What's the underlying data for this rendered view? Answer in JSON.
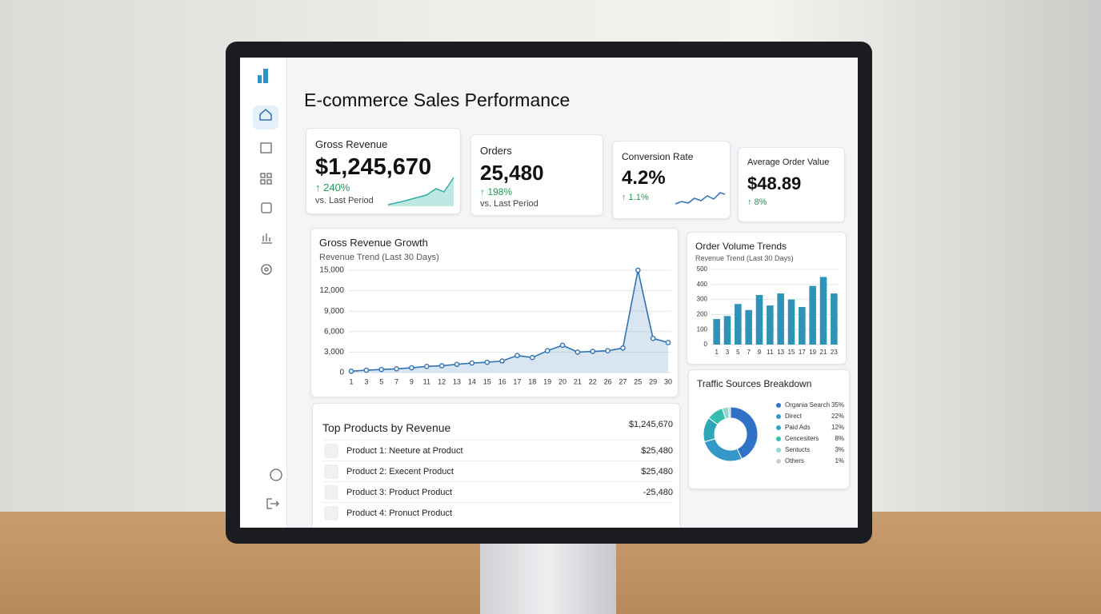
{
  "header": {
    "title": "E-commerce Sales Performance"
  },
  "kpis": [
    {
      "label": "Gross Revenue",
      "value": "$1,245,670",
      "change": "↑ 240%",
      "note": "vs. Last Period"
    },
    {
      "label": "Orders",
      "value": "25,480",
      "change": "↑ 198%",
      "note": "vs. Last Period"
    },
    {
      "label": "Conversion Rate",
      "value": "4.2%",
      "change": "↑ 1.1%"
    },
    {
      "label": "Average Order Value",
      "value": "$48.89",
      "change": "↑ 8%"
    }
  ],
  "revenue_chart": {
    "type": "line",
    "title": "Gross Revenue Growth",
    "subtitle": "Revenue Trend (Last 30 Days)",
    "categories": [
      "1",
      "3",
      "5",
      "7",
      "9",
      "11",
      "12",
      "13",
      "14",
      "15",
      "16",
      "17",
      "18",
      "19",
      "20",
      "21",
      "22",
      "26",
      "27",
      "25",
      "29",
      "30"
    ],
    "values": [
      200,
      350,
      450,
      550,
      700,
      900,
      1000,
      1200,
      1400,
      1500,
      1700,
      2500,
      2200,
      3200,
      4000,
      3000,
      3100,
      3200,
      3600,
      15000,
      5000,
      4400
    ],
    "color": "#2f72b8",
    "ylim": [
      0,
      15000
    ],
    "yticks": [
      0,
      {
        "value": 3000,
        "label": "3,000"
      },
      {
        "value": 6000,
        "label": "6,000"
      },
      {
        "value": 9000,
        "label": "9,000"
      },
      {
        "value": 12000,
        "label": "12,000"
      },
      {
        "value": 15000,
        "label": "15,000"
      }
    ],
    "grid": true
  },
  "order_chart": {
    "type": "bar",
    "title": "Order Volume Trends",
    "subtitle": "Revenue Trend (Last 30 Days)",
    "categories": [
      "1",
      "3",
      "5",
      "7",
      "9",
      "11",
      "13",
      "15",
      "17",
      "19",
      "21",
      "23"
    ],
    "values": [
      170,
      190,
      270,
      230,
      330,
      260,
      340,
      300,
      250,
      390,
      450,
      340
    ],
    "color": "#2f93b8",
    "ylim": [
      0,
      500
    ],
    "yticks": [
      0,
      100,
      200,
      300,
      400,
      500
    ],
    "grid": true
  },
  "traffic_chart": {
    "type": "pie",
    "title": "Traffic Sources Breakdown",
    "categories": [
      "Organia Search",
      "Direct",
      "Paid Ads",
      "Cencesiters",
      "Sentucts",
      "Others"
    ],
    "values": [
      35,
      22,
      12,
      8,
      3,
      1
    ],
    "value_labels": [
      "35%",
      "22%",
      "12%",
      "8%",
      "3%",
      "1%"
    ],
    "colors": [
      "#2f72c8",
      "#3498c8",
      "#2fa6b8",
      "#36bfb0",
      "#8fd8d0",
      "#c9ccd3"
    ]
  },
  "products": {
    "title": "Top Products by Revenue",
    "total": "$1,245,670",
    "rows": [
      [
        "Product 1: Neeture at Product",
        "$25,480"
      ],
      [
        "Product 2: Execent Product",
        "$25,480"
      ],
      [
        "Product 3: Product Product",
        "-25,480"
      ],
      [
        "Product 4: Pronuct Product"
      ]
    ]
  }
}
